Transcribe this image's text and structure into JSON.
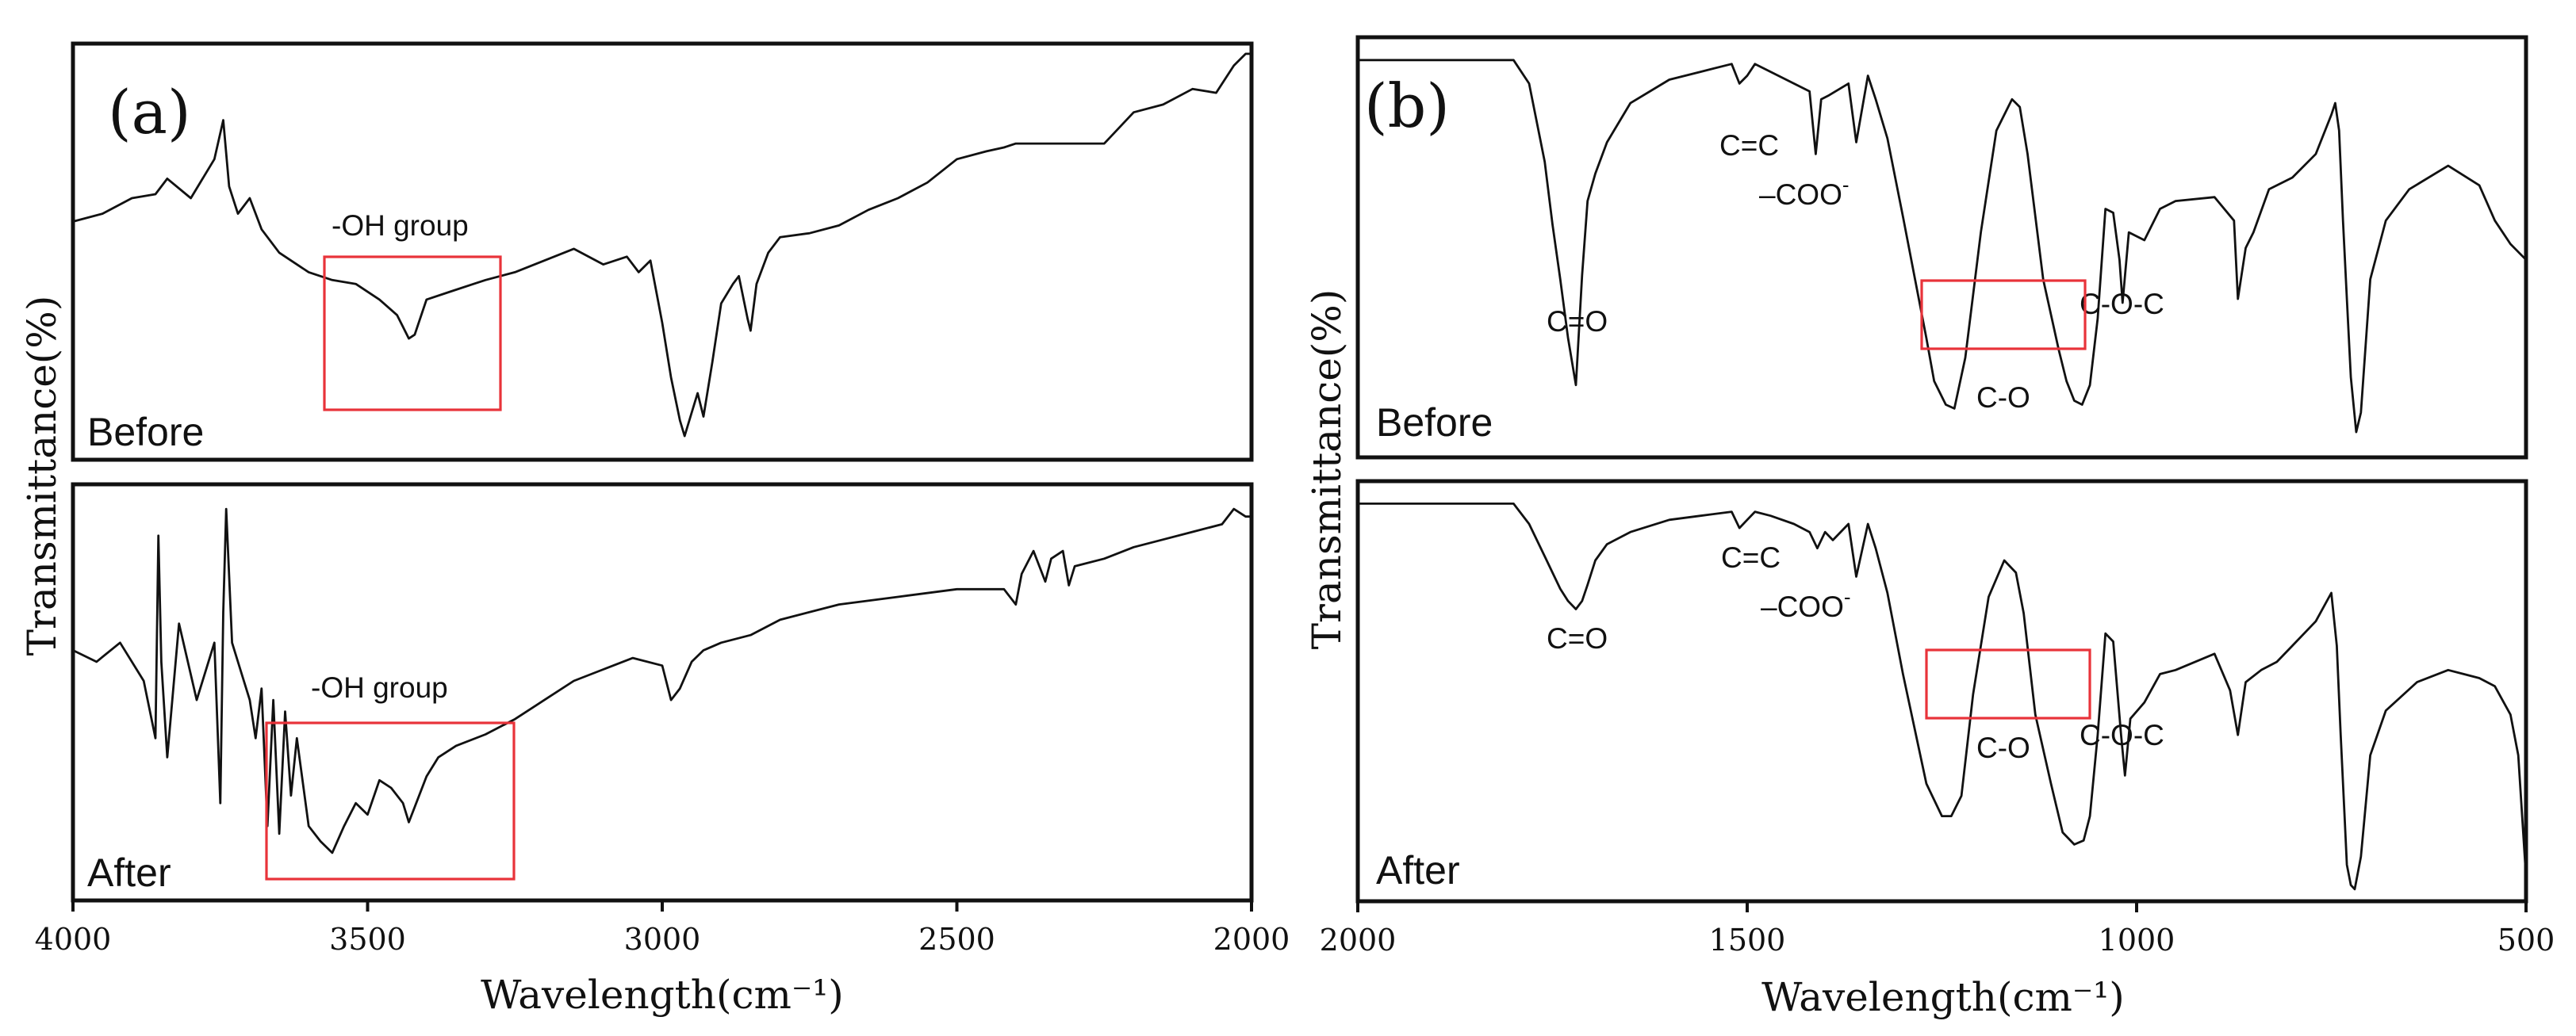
{
  "chart_data": [
    {
      "type": "line",
      "panel_label": "(a)",
      "xlabel": "Wavelength(cm⁻¹)",
      "ylabel": "Transmittance(%)",
      "xlim": [
        4000,
        2000
      ],
      "xticks": [
        4000,
        3500,
        3000,
        2500,
        2000
      ],
      "xtick_labels": [
        "4000",
        "3500",
        "3000",
        "2500",
        "2000"
      ],
      "yunits": "relative transmittance (0-1 within each sub-panel)",
      "series": [
        {
          "name": "Before",
          "label": "Before",
          "x": [
            4000,
            3950,
            3900,
            3860,
            3840,
            3800,
            3760,
            3745,
            3735,
            3720,
            3700,
            3680,
            3650,
            3620,
            3600,
            3560,
            3520,
            3480,
            3450,
            3430,
            3420,
            3400,
            3360,
            3320,
            3300,
            3250,
            3200,
            3150,
            3100,
            3060,
            3040,
            3020,
            3000,
            2985,
            2970,
            2962,
            2950,
            2940,
            2930,
            2915,
            2900,
            2880,
            2870,
            2855,
            2850,
            2840,
            2820,
            2800,
            2750,
            2700,
            2650,
            2600,
            2550,
            2500,
            2450,
            2420,
            2400,
            2350,
            2300,
            2250,
            2200,
            2150,
            2100,
            2060,
            2030,
            2010,
            2000
          ],
          "values": [
            0.56,
            0.58,
            0.62,
            0.63,
            0.67,
            0.62,
            0.72,
            0.82,
            0.65,
            0.58,
            0.62,
            0.54,
            0.48,
            0.45,
            0.43,
            0.41,
            0.4,
            0.36,
            0.32,
            0.26,
            0.27,
            0.36,
            0.38,
            0.4,
            0.41,
            0.43,
            0.46,
            0.49,
            0.45,
            0.47,
            0.43,
            0.46,
            0.3,
            0.16,
            0.05,
            0.01,
            0.07,
            0.12,
            0.06,
            0.2,
            0.35,
            0.4,
            0.42,
            0.31,
            0.28,
            0.4,
            0.48,
            0.52,
            0.53,
            0.55,
            0.59,
            0.62,
            0.66,
            0.72,
            0.74,
            0.75,
            0.76,
            0.76,
            0.76,
            0.76,
            0.84,
            0.86,
            0.9,
            0.89,
            0.96,
            0.99,
            0.99
          ]
        },
        {
          "name": "After",
          "label": "After",
          "x": [
            4000,
            3960,
            3920,
            3880,
            3860,
            3855,
            3850,
            3840,
            3820,
            3790,
            3760,
            3750,
            3745,
            3740,
            3730,
            3720,
            3700,
            3690,
            3680,
            3670,
            3660,
            3650,
            3640,
            3630,
            3620,
            3600,
            3580,
            3560,
            3540,
            3520,
            3500,
            3480,
            3460,
            3440,
            3430,
            3420,
            3400,
            3380,
            3350,
            3300,
            3250,
            3200,
            3150,
            3100,
            3050,
            3000,
            2985,
            2970,
            2950,
            2930,
            2900,
            2850,
            2800,
            2700,
            2600,
            2500,
            2420,
            2400,
            2390,
            2370,
            2350,
            2340,
            2320,
            2310,
            2300,
            2250,
            2200,
            2150,
            2100,
            2050,
            2030,
            2010,
            2000
          ],
          "values": [
            0.58,
            0.55,
            0.6,
            0.5,
            0.35,
            0.88,
            0.55,
            0.3,
            0.65,
            0.45,
            0.6,
            0.18,
            0.68,
            0.95,
            0.6,
            0.55,
            0.45,
            0.35,
            0.48,
            0.12,
            0.45,
            0.1,
            0.42,
            0.2,
            0.35,
            0.12,
            0.08,
            0.05,
            0.12,
            0.18,
            0.15,
            0.24,
            0.22,
            0.18,
            0.13,
            0.17,
            0.25,
            0.3,
            0.33,
            0.36,
            0.4,
            0.45,
            0.5,
            0.53,
            0.56,
            0.54,
            0.45,
            0.48,
            0.55,
            0.58,
            0.6,
            0.62,
            0.66,
            0.7,
            0.72,
            0.74,
            0.74,
            0.7,
            0.78,
            0.84,
            0.76,
            0.82,
            0.84,
            0.75,
            0.8,
            0.82,
            0.85,
            0.87,
            0.89,
            0.91,
            0.95,
            0.93,
            0.93
          ]
        }
      ],
      "annotations": [
        {
          "text": "-OH group",
          "series": "Before",
          "box_x": [
            3585,
            3290
          ]
        },
        {
          "text": "-OH group",
          "series": "After",
          "box_x": [
            3680,
            3250
          ]
        }
      ]
    },
    {
      "type": "line",
      "panel_label": "(b)",
      "xlabel": "Wavelength(cm⁻¹)",
      "ylabel": "Transmittance(%)",
      "xlim": [
        2000,
        500
      ],
      "xticks": [
        2000,
        1500,
        1000,
        500
      ],
      "xtick_labels": [
        "2000",
        "1500",
        "1000",
        "500"
      ],
      "yunits": "relative transmittance (0-1 within each sub-panel)",
      "series": [
        {
          "name": "Before",
          "label": "Before",
          "x": [
            2000,
            1800,
            1780,
            1760,
            1750,
            1740,
            1730,
            1720,
            1712,
            1705,
            1695,
            1680,
            1650,
            1600,
            1560,
            1520,
            1510,
            1500,
            1490,
            1470,
            1440,
            1420,
            1412,
            1405,
            1395,
            1370,
            1360,
            1345,
            1335,
            1320,
            1300,
            1270,
            1260,
            1245,
            1234,
            1220,
            1200,
            1180,
            1160,
            1150,
            1140,
            1120,
            1100,
            1090,
            1080,
            1070,
            1060,
            1050,
            1040,
            1030,
            1022,
            1018,
            1010,
            990,
            970,
            950,
            900,
            875,
            870,
            860,
            850,
            830,
            800,
            770,
            750,
            745,
            740,
            735,
            730,
            725,
            718,
            712,
            700,
            680,
            650,
            600,
            560,
            540,
            520,
            510,
            500
          ],
          "values": [
            0.96,
            0.96,
            0.9,
            0.7,
            0.54,
            0.4,
            0.25,
            0.13,
            0.41,
            0.6,
            0.67,
            0.75,
            0.85,
            0.91,
            0.93,
            0.95,
            0.9,
            0.92,
            0.95,
            0.93,
            0.9,
            0.88,
            0.72,
            0.86,
            0.87,
            0.9,
            0.75,
            0.92,
            0.86,
            0.76,
            0.56,
            0.25,
            0.14,
            0.08,
            0.07,
            0.2,
            0.52,
            0.78,
            0.86,
            0.84,
            0.72,
            0.4,
            0.22,
            0.14,
            0.09,
            0.08,
            0.13,
            0.3,
            0.58,
            0.57,
            0.45,
            0.34,
            0.52,
            0.5,
            0.58,
            0.6,
            0.61,
            0.55,
            0.35,
            0.48,
            0.52,
            0.63,
            0.66,
            0.72,
            0.82,
            0.85,
            0.78,
            0.55,
            0.35,
            0.15,
            0.01,
            0.06,
            0.4,
            0.55,
            0.63,
            0.69,
            0.64,
            0.55,
            0.49,
            0.47,
            0.45
          ]
        },
        {
          "name": "After",
          "label": "After",
          "x": [
            2000,
            1800,
            1780,
            1760,
            1740,
            1730,
            1720,
            1712,
            1705,
            1695,
            1680,
            1650,
            1600,
            1560,
            1520,
            1510,
            1500,
            1490,
            1470,
            1440,
            1420,
            1410,
            1400,
            1390,
            1370,
            1360,
            1345,
            1335,
            1320,
            1300,
            1270,
            1250,
            1238,
            1225,
            1210,
            1190,
            1170,
            1155,
            1145,
            1130,
            1110,
            1095,
            1080,
            1068,
            1060,
            1050,
            1040,
            1030,
            1020,
            1015,
            1008,
            990,
            970,
            950,
            900,
            880,
            870,
            860,
            840,
            820,
            800,
            770,
            750,
            743,
            738,
            733,
            730,
            725,
            720,
            712,
            700,
            680,
            640,
            600,
            580,
            560,
            540,
            520,
            510,
            505,
            500
          ],
          "values": [
            0.97,
            0.97,
            0.92,
            0.84,
            0.76,
            0.73,
            0.71,
            0.73,
            0.77,
            0.83,
            0.87,
            0.9,
            0.93,
            0.94,
            0.95,
            0.91,
            0.93,
            0.95,
            0.94,
            0.92,
            0.9,
            0.86,
            0.9,
            0.88,
            0.92,
            0.79,
            0.92,
            0.86,
            0.75,
            0.55,
            0.28,
            0.2,
            0.2,
            0.25,
            0.5,
            0.74,
            0.83,
            0.8,
            0.7,
            0.45,
            0.28,
            0.16,
            0.13,
            0.14,
            0.2,
            0.4,
            0.65,
            0.63,
            0.4,
            0.3,
            0.44,
            0.48,
            0.55,
            0.56,
            0.6,
            0.51,
            0.4,
            0.53,
            0.56,
            0.58,
            0.62,
            0.68,
            0.75,
            0.62,
            0.4,
            0.2,
            0.08,
            0.03,
            0.02,
            0.1,
            0.35,
            0.46,
            0.53,
            0.56,
            0.55,
            0.54,
            0.52,
            0.45,
            0.35,
            0.2,
            0.05
          ]
        }
      ],
      "annotations": [
        {
          "text": "C=O",
          "series": "Before"
        },
        {
          "text": "C=C",
          "series": "Before"
        },
        {
          "text": "–COO",
          "superscript": "-",
          "series": "Before"
        },
        {
          "text": "C-O-C",
          "series": "Before"
        },
        {
          "text": "C-O",
          "series": "Before",
          "box_x": [
            1255,
            1045
          ]
        },
        {
          "text": "C=O",
          "series": "After"
        },
        {
          "text": "C=C",
          "series": "After"
        },
        {
          "text": "–COO",
          "superscript": "-",
          "series": "After"
        },
        {
          "text": "C-O",
          "series": "After",
          "box_x": [
            1250,
            1040
          ]
        },
        {
          "text": "C-O-C",
          "series": "After"
        }
      ]
    }
  ]
}
